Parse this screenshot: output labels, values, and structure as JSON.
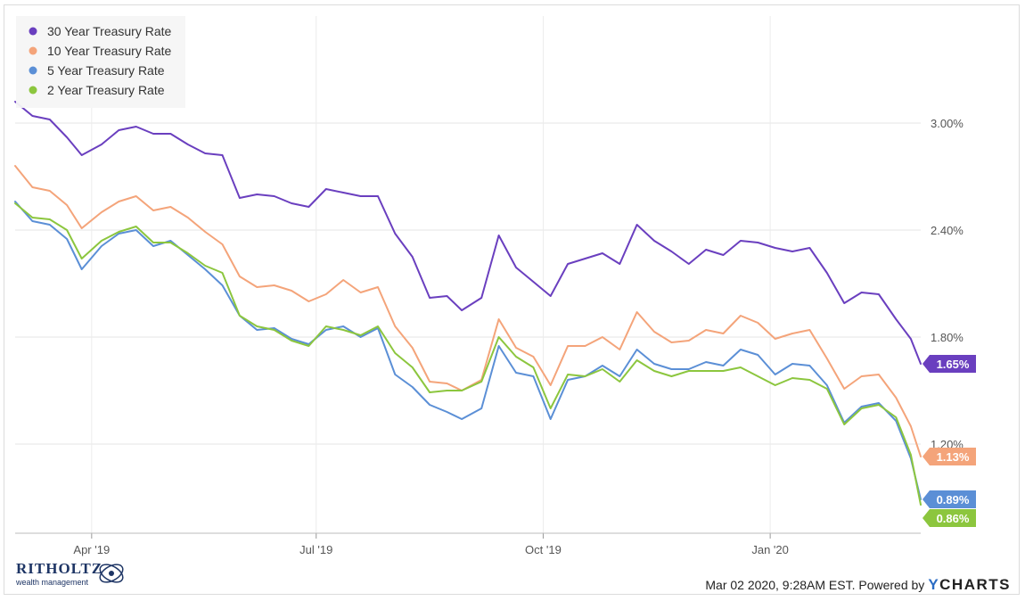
{
  "chart_data": {
    "type": "line",
    "xlabel": "",
    "ylabel": "",
    "x_ticks": [
      "Apr '19",
      "Jul '19",
      "Oct '19",
      "Jan '20"
    ],
    "x_tick_dates": [
      "2019-04-01",
      "2019-07-01",
      "2019-10-01",
      "2020-01-01"
    ],
    "x_range": [
      "2019-03-01",
      "2020-03-02"
    ],
    "y_ticks": [
      "1.20%",
      "1.80%",
      "2.40%",
      "3.00%"
    ],
    "y_tick_values": [
      1.2,
      1.8,
      2.4,
      3.0
    ],
    "ylim": [
      0.7,
      3.6
    ],
    "grid": true,
    "legend_position": "top-left",
    "series": [
      {
        "name": "30 Year Treasury Rate",
        "color": "#6a3fbf",
        "end_label": "1.65%",
        "points": [
          [
            "2019-03-01",
            3.12
          ],
          [
            "2019-03-08",
            3.04
          ],
          [
            "2019-03-15",
            3.02
          ],
          [
            "2019-03-22",
            2.92
          ],
          [
            "2019-03-28",
            2.82
          ],
          [
            "2019-04-05",
            2.88
          ],
          [
            "2019-04-12",
            2.96
          ],
          [
            "2019-04-19",
            2.98
          ],
          [
            "2019-04-26",
            2.94
          ],
          [
            "2019-05-03",
            2.94
          ],
          [
            "2019-05-10",
            2.88
          ],
          [
            "2019-05-17",
            2.83
          ],
          [
            "2019-05-24",
            2.82
          ],
          [
            "2019-05-31",
            2.58
          ],
          [
            "2019-06-07",
            2.6
          ],
          [
            "2019-06-14",
            2.59
          ],
          [
            "2019-06-21",
            2.55
          ],
          [
            "2019-06-28",
            2.53
          ],
          [
            "2019-07-05",
            2.63
          ],
          [
            "2019-07-12",
            2.61
          ],
          [
            "2019-07-19",
            2.59
          ],
          [
            "2019-07-26",
            2.59
          ],
          [
            "2019-08-02",
            2.38
          ],
          [
            "2019-08-09",
            2.25
          ],
          [
            "2019-08-16",
            2.02
          ],
          [
            "2019-08-23",
            2.03
          ],
          [
            "2019-08-29",
            1.95
          ],
          [
            "2019-09-06",
            2.02
          ],
          [
            "2019-09-13",
            2.37
          ],
          [
            "2019-09-20",
            2.19
          ],
          [
            "2019-09-27",
            2.11
          ],
          [
            "2019-10-04",
            2.03
          ],
          [
            "2019-10-11",
            2.21
          ],
          [
            "2019-10-18",
            2.24
          ],
          [
            "2019-10-25",
            2.27
          ],
          [
            "2019-11-01",
            2.21
          ],
          [
            "2019-11-08",
            2.43
          ],
          [
            "2019-11-15",
            2.34
          ],
          [
            "2019-11-22",
            2.28
          ],
          [
            "2019-11-29",
            2.21
          ],
          [
            "2019-12-06",
            2.29
          ],
          [
            "2019-12-13",
            2.26
          ],
          [
            "2019-12-20",
            2.34
          ],
          [
            "2019-12-27",
            2.33
          ],
          [
            "2020-01-03",
            2.3
          ],
          [
            "2020-01-10",
            2.28
          ],
          [
            "2020-01-17",
            2.3
          ],
          [
            "2020-01-24",
            2.16
          ],
          [
            "2020-01-31",
            1.99
          ],
          [
            "2020-02-07",
            2.05
          ],
          [
            "2020-02-14",
            2.04
          ],
          [
            "2020-02-21",
            1.9
          ],
          [
            "2020-02-27",
            1.79
          ],
          [
            "2020-03-02",
            1.65
          ]
        ]
      },
      {
        "name": "10 Year Treasury Rate",
        "color": "#f4a47a",
        "end_label": "1.13%",
        "points": [
          [
            "2019-03-01",
            2.76
          ],
          [
            "2019-03-08",
            2.64
          ],
          [
            "2019-03-15",
            2.62
          ],
          [
            "2019-03-22",
            2.54
          ],
          [
            "2019-03-28",
            2.41
          ],
          [
            "2019-04-05",
            2.5
          ],
          [
            "2019-04-12",
            2.56
          ],
          [
            "2019-04-19",
            2.59
          ],
          [
            "2019-04-26",
            2.51
          ],
          [
            "2019-05-03",
            2.53
          ],
          [
            "2019-05-10",
            2.47
          ],
          [
            "2019-05-17",
            2.39
          ],
          [
            "2019-05-24",
            2.32
          ],
          [
            "2019-05-31",
            2.14
          ],
          [
            "2019-06-07",
            2.08
          ],
          [
            "2019-06-14",
            2.09
          ],
          [
            "2019-06-21",
            2.06
          ],
          [
            "2019-06-28",
            2.0
          ],
          [
            "2019-07-05",
            2.04
          ],
          [
            "2019-07-12",
            2.12
          ],
          [
            "2019-07-19",
            2.05
          ],
          [
            "2019-07-26",
            2.08
          ],
          [
            "2019-08-02",
            1.86
          ],
          [
            "2019-08-09",
            1.74
          ],
          [
            "2019-08-16",
            1.55
          ],
          [
            "2019-08-23",
            1.54
          ],
          [
            "2019-08-29",
            1.5
          ],
          [
            "2019-09-06",
            1.56
          ],
          [
            "2019-09-13",
            1.9
          ],
          [
            "2019-09-20",
            1.74
          ],
          [
            "2019-09-27",
            1.69
          ],
          [
            "2019-10-04",
            1.53
          ],
          [
            "2019-10-11",
            1.75
          ],
          [
            "2019-10-18",
            1.75
          ],
          [
            "2019-10-25",
            1.8
          ],
          [
            "2019-11-01",
            1.73
          ],
          [
            "2019-11-08",
            1.94
          ],
          [
            "2019-11-15",
            1.83
          ],
          [
            "2019-11-22",
            1.77
          ],
          [
            "2019-11-29",
            1.78
          ],
          [
            "2019-12-06",
            1.84
          ],
          [
            "2019-12-13",
            1.82
          ],
          [
            "2019-12-20",
            1.92
          ],
          [
            "2019-12-27",
            1.88
          ],
          [
            "2020-01-03",
            1.79
          ],
          [
            "2020-01-10",
            1.82
          ],
          [
            "2020-01-17",
            1.84
          ],
          [
            "2020-01-24",
            1.68
          ],
          [
            "2020-01-31",
            1.51
          ],
          [
            "2020-02-07",
            1.58
          ],
          [
            "2020-02-14",
            1.59
          ],
          [
            "2020-02-21",
            1.46
          ],
          [
            "2020-02-27",
            1.3
          ],
          [
            "2020-03-02",
            1.13
          ]
        ]
      },
      {
        "name": "5 Year Treasury Rate",
        "color": "#5b8fd6",
        "end_label": "0.89%",
        "points": [
          [
            "2019-03-01",
            2.56
          ],
          [
            "2019-03-08",
            2.45
          ],
          [
            "2019-03-15",
            2.43
          ],
          [
            "2019-03-22",
            2.35
          ],
          [
            "2019-03-28",
            2.18
          ],
          [
            "2019-04-05",
            2.31
          ],
          [
            "2019-04-12",
            2.38
          ],
          [
            "2019-04-19",
            2.4
          ],
          [
            "2019-04-26",
            2.31
          ],
          [
            "2019-05-03",
            2.34
          ],
          [
            "2019-05-10",
            2.26
          ],
          [
            "2019-05-17",
            2.18
          ],
          [
            "2019-05-24",
            2.09
          ],
          [
            "2019-05-31",
            1.92
          ],
          [
            "2019-06-07",
            1.84
          ],
          [
            "2019-06-14",
            1.85
          ],
          [
            "2019-06-21",
            1.79
          ],
          [
            "2019-06-28",
            1.76
          ],
          [
            "2019-07-05",
            1.84
          ],
          [
            "2019-07-12",
            1.86
          ],
          [
            "2019-07-19",
            1.8
          ],
          [
            "2019-07-26",
            1.85
          ],
          [
            "2019-08-02",
            1.59
          ],
          [
            "2019-08-09",
            1.52
          ],
          [
            "2019-08-16",
            1.42
          ],
          [
            "2019-08-23",
            1.38
          ],
          [
            "2019-08-29",
            1.34
          ],
          [
            "2019-09-06",
            1.4
          ],
          [
            "2019-09-13",
            1.75
          ],
          [
            "2019-09-20",
            1.6
          ],
          [
            "2019-09-27",
            1.58
          ],
          [
            "2019-10-04",
            1.34
          ],
          [
            "2019-10-11",
            1.56
          ],
          [
            "2019-10-18",
            1.58
          ],
          [
            "2019-10-25",
            1.64
          ],
          [
            "2019-11-01",
            1.58
          ],
          [
            "2019-11-08",
            1.73
          ],
          [
            "2019-11-15",
            1.65
          ],
          [
            "2019-11-22",
            1.62
          ],
          [
            "2019-11-29",
            1.62
          ],
          [
            "2019-12-06",
            1.66
          ],
          [
            "2019-12-13",
            1.64
          ],
          [
            "2019-12-20",
            1.73
          ],
          [
            "2019-12-27",
            1.7
          ],
          [
            "2020-01-03",
            1.59
          ],
          [
            "2020-01-10",
            1.65
          ],
          [
            "2020-01-17",
            1.64
          ],
          [
            "2020-01-24",
            1.53
          ],
          [
            "2020-01-31",
            1.32
          ],
          [
            "2020-02-07",
            1.41
          ],
          [
            "2020-02-14",
            1.43
          ],
          [
            "2020-02-21",
            1.33
          ],
          [
            "2020-02-27",
            1.12
          ],
          [
            "2020-03-02",
            0.89
          ]
        ]
      },
      {
        "name": "2 Year Treasury Rate",
        "color": "#8cc63e",
        "end_label": "0.86%",
        "points": [
          [
            "2019-03-01",
            2.55
          ],
          [
            "2019-03-08",
            2.47
          ],
          [
            "2019-03-15",
            2.46
          ],
          [
            "2019-03-22",
            2.4
          ],
          [
            "2019-03-28",
            2.24
          ],
          [
            "2019-04-05",
            2.34
          ],
          [
            "2019-04-12",
            2.39
          ],
          [
            "2019-04-19",
            2.42
          ],
          [
            "2019-04-26",
            2.33
          ],
          [
            "2019-05-03",
            2.33
          ],
          [
            "2019-05-10",
            2.27
          ],
          [
            "2019-05-17",
            2.2
          ],
          [
            "2019-05-24",
            2.16
          ],
          [
            "2019-05-31",
            1.92
          ],
          [
            "2019-06-07",
            1.86
          ],
          [
            "2019-06-14",
            1.84
          ],
          [
            "2019-06-21",
            1.78
          ],
          [
            "2019-06-28",
            1.75
          ],
          [
            "2019-07-05",
            1.86
          ],
          [
            "2019-07-12",
            1.84
          ],
          [
            "2019-07-19",
            1.81
          ],
          [
            "2019-07-26",
            1.86
          ],
          [
            "2019-08-02",
            1.71
          ],
          [
            "2019-08-09",
            1.63
          ],
          [
            "2019-08-16",
            1.49
          ],
          [
            "2019-08-23",
            1.5
          ],
          [
            "2019-08-29",
            1.5
          ],
          [
            "2019-09-06",
            1.55
          ],
          [
            "2019-09-13",
            1.8
          ],
          [
            "2019-09-20",
            1.69
          ],
          [
            "2019-09-27",
            1.63
          ],
          [
            "2019-10-04",
            1.4
          ],
          [
            "2019-10-11",
            1.59
          ],
          [
            "2019-10-18",
            1.58
          ],
          [
            "2019-10-25",
            1.62
          ],
          [
            "2019-11-01",
            1.55
          ],
          [
            "2019-11-08",
            1.67
          ],
          [
            "2019-11-15",
            1.61
          ],
          [
            "2019-11-22",
            1.58
          ],
          [
            "2019-11-29",
            1.61
          ],
          [
            "2019-12-06",
            1.61
          ],
          [
            "2019-12-13",
            1.61
          ],
          [
            "2019-12-20",
            1.63
          ],
          [
            "2019-12-27",
            1.58
          ],
          [
            "2020-01-03",
            1.53
          ],
          [
            "2020-01-10",
            1.57
          ],
          [
            "2020-01-17",
            1.56
          ],
          [
            "2020-01-24",
            1.51
          ],
          [
            "2020-01-31",
            1.31
          ],
          [
            "2020-02-07",
            1.4
          ],
          [
            "2020-02-14",
            1.42
          ],
          [
            "2020-02-21",
            1.35
          ],
          [
            "2020-02-27",
            1.14
          ],
          [
            "2020-03-02",
            0.86
          ]
        ]
      }
    ]
  },
  "footer": {
    "logo_name": "RITHOLTZ",
    "logo_sub": "wealth management",
    "timestamp": "Mar 02 2020, 9:28AM EST. Powered by",
    "brand_y": "Y",
    "brand_rest": "CHARTS"
  }
}
